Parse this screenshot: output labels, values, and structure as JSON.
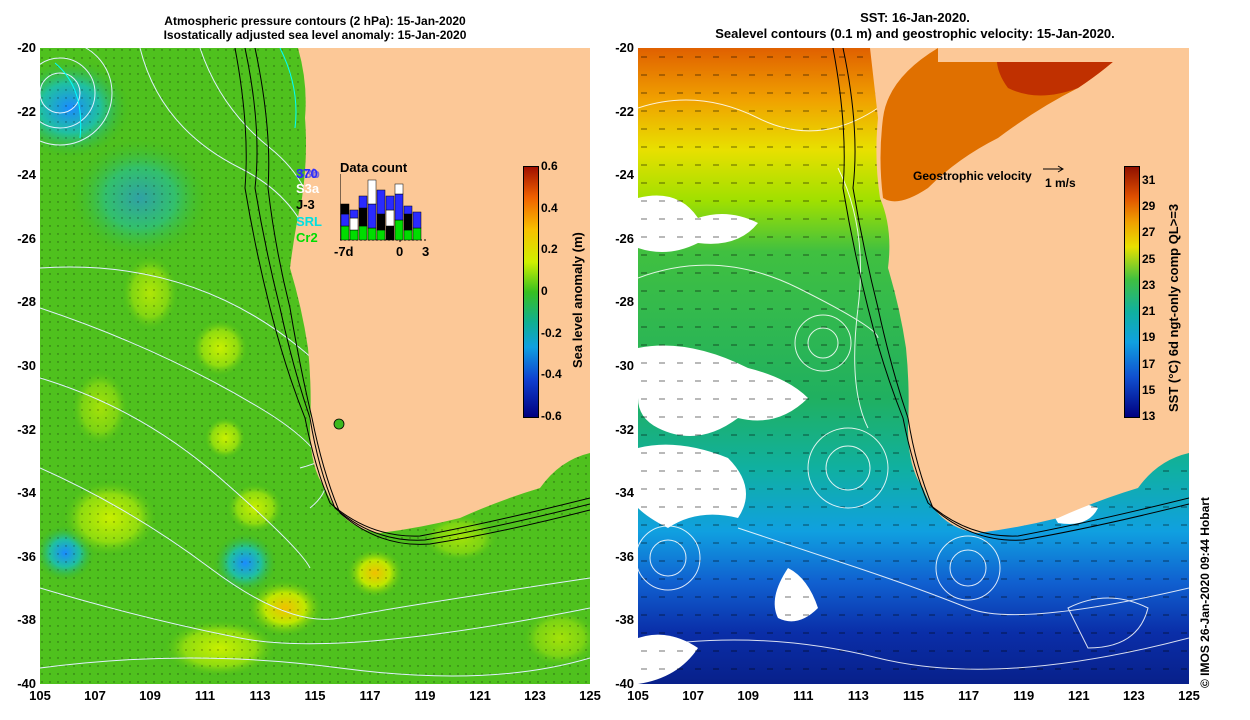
{
  "left_panel": {
    "title_line1": "Atmospheric pressure contours (2 hPa): 15-Jan-2020",
    "title_line2": "Isostatically adjusted sea level anomaly: 15-Jan-2020",
    "colorbar": {
      "label": "Sea level anomaly (m)",
      "ticks": [
        "0.6",
        "0.4",
        "0.2",
        "0",
        "-0.2",
        "-0.4",
        "-0.6"
      ],
      "range": [
        -0.6,
        0.6
      ]
    },
    "data_count": {
      "title": "Data count",
      "x_ticks": [
        "-7d",
        "0",
        "3"
      ],
      "satellites": [
        {
          "name": "J-3",
          "color": "#000000"
        },
        {
          "name": "S3a",
          "color": "#ffffff"
        },
        {
          "name": "S3b",
          "color": "#2a2aff"
        },
        {
          "name": "SRL",
          "color": "#00e0e0"
        },
        {
          "name": "Cr2",
          "color": "#00dd00"
        }
      ],
      "overlap_labels": [
        "370",
        "S3b"
      ]
    }
  },
  "right_panel": {
    "title_line1": "SST: 16-Jan-2020.",
    "title_line2": "Sealevel contours (0.1 m) and geostrophic velocity: 15-Jan-2020.",
    "colorbar": {
      "label": "SST (°C) 6d ngt-only comp QL>=3",
      "ticks": [
        "31",
        "29",
        "27",
        "25",
        "23",
        "21",
        "19",
        "17",
        "15",
        "13"
      ],
      "range": [
        13,
        32
      ]
    },
    "velocity_legend": {
      "label": "Geostrophic velocity",
      "scale": "1 m/s"
    }
  },
  "axes": {
    "lon_ticks": [
      "105",
      "107",
      "109",
      "111",
      "113",
      "115",
      "117",
      "119",
      "121",
      "123",
      "125"
    ],
    "lat_ticks": [
      "-20",
      "-22",
      "-24",
      "-26",
      "-28",
      "-30",
      "-32",
      "-34",
      "-36",
      "-38",
      "-40"
    ]
  },
  "credit": "© IMOS 26-Jan-2020 09:44 Hobart",
  "colors": {
    "land": "#fcc897",
    "sla_background": "#3cb81e",
    "sst_warm": "#d04a00",
    "sst_cold": "#0a2ea8"
  }
}
